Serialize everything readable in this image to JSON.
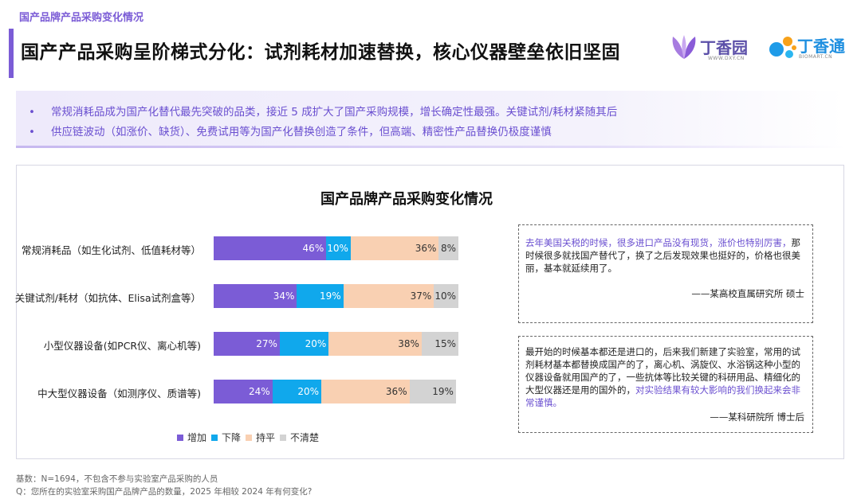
{
  "header": {
    "top_label": "国产品牌产品采购变化情况",
    "main_title": "国产产品采购呈阶梯式分化：试剂耗材加速替换，核心仪器壁垒依旧坚固",
    "logo_dxy_text": "丁香园",
    "logo_dxy_sub": "WWW.DXY.CN",
    "logo_bio_text": "丁香通",
    "logo_bio_sub": "BIOMART.CN",
    "accent_color": "#7B5CD6"
  },
  "bullets": [
    {
      "marker": "•",
      "text": "常规消耗品成为国产化替代最先突破的品类，接近 5 成扩大了国产采购规模，增长确定性最强。关键试剂/耗材紧随其后"
    },
    {
      "marker": "•",
      "text": "供应链波动（如涨价、缺货）、免费试用等为国产化替换创造了条件，但高端、精密性产品替换仍极度谨慎"
    }
  ],
  "chart_data": {
    "type": "bar",
    "orientation": "horizontal",
    "stacked": true,
    "title": "国产品牌产品采购变化情况",
    "categories": [
      "常规消耗品（如生化试剂、低值耗材等）",
      "关键试剂/耗材（如抗体、Elisa试剂盒等）",
      "小型仪器设备(如PCR仪、离心机等)",
      "中大型仪器设备（如测序仪、质谱等)"
    ],
    "series": [
      {
        "name": "增加",
        "color": "#7B5CD6",
        "label_color": "#ffffff",
        "values": [
          46,
          34,
          27,
          24
        ],
        "labels": [
          "46%",
          "34%",
          "27%",
          "24%"
        ]
      },
      {
        "name": "下降",
        "color": "#10A8EC",
        "label_color": "#ffffff",
        "values": [
          10,
          19,
          20,
          20
        ],
        "labels": [
          "10%",
          "19%",
          "20%",
          "20%"
        ]
      },
      {
        "name": "持平",
        "color": "#F9D0B2",
        "label_color": "#333333",
        "values": [
          36,
          37,
          38,
          36
        ],
        "labels": [
          "36%",
          "37%",
          "38%",
          "36%"
        ]
      },
      {
        "name": "不清楚",
        "color": "#D3D3D3",
        "label_color": "#333333",
        "values": [
          8,
          10,
          15,
          19
        ],
        "labels": [
          "8%",
          "10%",
          "15%",
          "19%"
        ]
      }
    ],
    "xlim": [
      0,
      100
    ],
    "legend_position": "bottom-left"
  },
  "quotes": [
    {
      "text_hl": "去年美国关税的时候，很多进口产品没有现货，涨价也特别厉害，",
      "text_rest": "那时候很多就找国产替代了，换了之后发现效果也挺好的，价格也很美丽，基本就延续用了。",
      "source": "——某高校直属研究所 硕士"
    },
    {
      "text_rest": "最开始的时候基本都还是进口的，后来我们新建了实验室，常用的试剂耗材基本都替换成国产的了，离心机、涡旋仪、水浴锅这种小型的仪器设备就用国产的了，一些抗体等比较关键的科研用品、精细化的大型仪器还是用的国外的，",
      "text_hl": "对实验结果有较大影响的我们换起来会非常谨慎。",
      "source": "——某科研院所 博士后"
    }
  ],
  "footnotes": {
    "base": "基数：N=1694，不包含不参与实验室产品采购的人员",
    "question": "Q：您所在的实验室采购国产品牌产品的数量，2025 年相较 2024 年有何变化?"
  }
}
